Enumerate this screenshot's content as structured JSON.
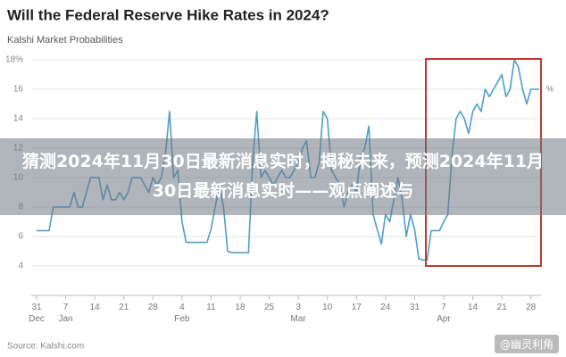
{
  "chart_data": {
    "type": "line",
    "title": "Will the Federal Reserve Hike Rates in 2024?",
    "subtitle": "Kalshi Market Probabilities",
    "source": "Source: Kalshi.com",
    "unit_label": "%",
    "overlay_text": "猜测2024年11月30日最新消息实时，揭秘未来，预测2024年11月30日最新消息实时——观点阐述与",
    "watermark": "@幽灵利角",
    "color": "#4f9fc9",
    "ylim": [
      2,
      18
    ],
    "yticks": [
      4,
      6,
      8,
      10,
      12,
      14,
      16,
      {
        "value": 18,
        "label": "18%"
      }
    ],
    "grid": true,
    "categories": [
      "31\nDec",
      null,
      null,
      null,
      null,
      null,
      null,
      "7\nJan",
      null,
      null,
      null,
      null,
      null,
      null,
      "14",
      null,
      null,
      null,
      null,
      null,
      null,
      "21",
      null,
      null,
      null,
      null,
      null,
      null,
      "28",
      null,
      null,
      null,
      null,
      null,
      null,
      "4\nFeb",
      null,
      null,
      null,
      null,
      null,
      null,
      "11",
      null,
      null,
      null,
      null,
      null,
      null,
      "18",
      null,
      null,
      null,
      null,
      null,
      null,
      "25",
      null,
      null,
      null,
      null,
      null,
      null,
      "3\nMar",
      null,
      null,
      null,
      null,
      null,
      null,
      "10",
      null,
      null,
      null,
      null,
      null,
      null,
      "17",
      null,
      null,
      null,
      null,
      null,
      null,
      "24",
      null,
      null,
      null,
      null,
      null,
      null,
      "31",
      null,
      null,
      null,
      null,
      null,
      null,
      "7\nApr",
      null,
      null,
      null,
      null,
      null,
      null,
      "14",
      null,
      null,
      null,
      null,
      null,
      null,
      "21",
      null,
      null,
      null,
      null,
      null,
      null,
      "28",
      null,
      null
    ],
    "values": [
      6.4,
      6.4,
      6.4,
      6.4,
      8,
      8,
      8,
      8,
      8,
      9,
      8,
      8,
      9,
      10,
      10,
      10,
      8.5,
      9.5,
      8.5,
      8.5,
      9,
      8.5,
      9,
      10,
      10,
      10,
      9.5,
      9,
      10,
      9.5,
      10,
      11.5,
      14.5,
      10,
      10.5,
      7,
      5.6,
      5.6,
      5.6,
      5.6,
      5.6,
      5.6,
      6.5,
      8,
      9.5,
      8,
      5,
      4.9,
      4.9,
      4.9,
      4.9,
      4.9,
      11,
      14.5,
      10,
      10.5,
      10,
      9.5,
      10,
      10.5,
      10,
      10,
      10.5,
      11,
      12,
      12.5,
      10,
      10,
      11,
      14.5,
      14,
      10.5,
      10,
      9.5,
      8,
      9,
      9.5,
      9,
      11.5,
      12,
      13.5,
      7.5,
      6.5,
      5.5,
      7.5,
      7,
      8.5,
      10,
      8.5,
      6,
      7.5,
      6.5,
      4.5,
      4.4,
      4.4,
      6.4,
      6.4,
      6.4,
      7,
      7.5,
      11.5,
      14,
      14.5,
      14,
      13,
      14.5,
      15,
      14.5,
      16,
      15.5,
      16,
      16.5,
      17,
      15.5,
      16,
      18,
      17.5,
      16,
      15,
      16,
      16,
      16
    ]
  }
}
